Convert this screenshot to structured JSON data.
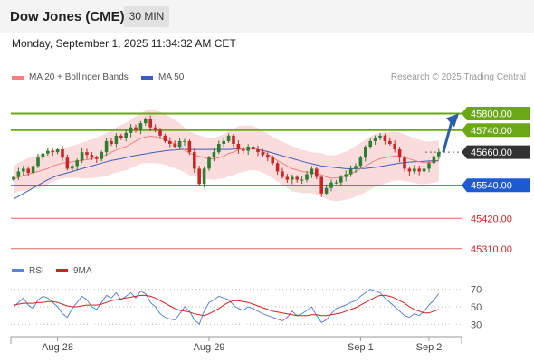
{
  "header": {
    "title": "Dow Jones (CME)",
    "timeframe": "30 MIN"
  },
  "datetime": "Monday, September 1, 2025 11:34:32 AM CET",
  "legend": {
    "bb_label": "MA 20 + Bollinger Bands",
    "ma50_label": "MA 50",
    "credit": "Research © 2025 Trading Central"
  },
  "colors": {
    "up": "#2e7d32",
    "down": "#c62828",
    "band": "#fbdcdc",
    "ma20": "#f08080",
    "ma50": "#3c5fb4",
    "resistance": "#6aa816",
    "support": "#e06666",
    "pivot": "#1e5ad0",
    "current": "#333333",
    "arrow": "#2e5ea8",
    "rsi": "#5b84d6",
    "rsi_ma": "#d62020"
  },
  "chart_data": [
    {
      "type": "candlestick",
      "x_labels": [
        "Aug 28",
        "Aug 29",
        "Sep 1",
        "Sep 2"
      ],
      "ylim": [
        45260,
        45900
      ],
      "levels": [
        {
          "value": 45800,
          "label": "45800.00",
          "kind": "resistance"
        },
        {
          "value": 45740,
          "label": "45740.00",
          "kind": "resistance"
        },
        {
          "value": 45660,
          "label": "45660.00",
          "kind": "current"
        },
        {
          "value": 45540,
          "label": "45540.00",
          "kind": "pivot"
        },
        {
          "value": 45420,
          "label": "45420.00",
          "kind": "support"
        },
        {
          "value": 45310,
          "label": "45310.00",
          "kind": "support"
        }
      ],
      "close": [
        45570,
        45590,
        45600,
        45585,
        45610,
        45640,
        45655,
        45665,
        45660,
        45670,
        45640,
        45600,
        45610,
        45630,
        45660,
        45650,
        45640,
        45635,
        45660,
        45700,
        45690,
        45720,
        45710,
        45730,
        45750,
        45740,
        45765,
        45780,
        45750,
        45740,
        45720,
        45700,
        45690,
        45680,
        45700,
        45700,
        45660,
        45600,
        45545,
        45600,
        45640,
        45660,
        45690,
        45700,
        45720,
        45690,
        45670,
        45665,
        45680,
        45670,
        45660,
        45650,
        45640,
        45620,
        45590,
        45570,
        45560,
        45570,
        45560,
        45560,
        45580,
        45600,
        45570,
        45510,
        45530,
        45550,
        45550,
        45570,
        45580,
        45600,
        45610,
        45640,
        45680,
        45700,
        45710,
        45720,
        45700,
        45690,
        45670,
        45640,
        45600,
        45590,
        45600,
        45590,
        45600,
        45620,
        45645,
        45660
      ],
      "ma20": [
        45560,
        45570,
        45575,
        45580,
        45585,
        45590,
        45595,
        45600,
        45610,
        45615,
        45620,
        45622,
        45625,
        45628,
        45630,
        45633,
        45636,
        45640,
        45645,
        45650,
        45660,
        45668,
        45675,
        45680,
        45690,
        45700,
        45710,
        45715,
        45718,
        45716,
        45712,
        45706,
        45698,
        45690,
        45680,
        45668,
        45656,
        45650,
        45645,
        45640,
        45636,
        45635,
        45640,
        45645,
        45655,
        45660,
        45670,
        45672,
        45675,
        45675,
        45670,
        45662,
        45652,
        45640,
        45630,
        45620,
        45610,
        45600,
        45595,
        45590,
        45588,
        45585,
        45582,
        45578,
        45570,
        45566,
        45566,
        45570,
        45575,
        45582,
        45590,
        45600,
        45610,
        45620,
        45630,
        45636,
        45640,
        45643,
        45646,
        45645,
        45640,
        45635,
        45630,
        45625,
        45622,
        45622,
        45625,
        45628
      ],
      "bb_width": [
        50,
        52,
        55,
        58,
        60,
        60,
        60,
        58,
        56,
        55,
        55,
        56,
        58,
        60,
        65,
        68,
        70,
        72,
        75,
        78,
        80,
        82,
        84,
        86,
        88,
        90,
        92,
        95,
        98,
        96,
        94,
        92,
        90,
        88,
        85,
        82,
        80,
        78,
        76,
        75,
        75,
        76,
        78,
        80,
        82,
        84,
        85,
        84,
        82,
        80,
        78,
        76,
        75,
        75,
        76,
        78,
        80,
        82,
        80,
        78,
        76,
        74,
        76,
        78,
        80,
        82,
        84,
        86,
        88,
        90,
        92,
        94,
        95,
        96,
        96,
        95,
        93,
        91,
        89,
        87,
        85,
        83,
        81,
        80,
        78,
        76,
        75,
        75
      ],
      "ma50": [
        45490,
        45500,
        45510,
        45520,
        45530,
        45540,
        45550,
        45560,
        45568,
        45575,
        45580,
        45585,
        45590,
        45595,
        45600,
        45605,
        45610,
        45615,
        45620,
        45625,
        45630,
        45633,
        45636,
        45640,
        45645,
        45648,
        45651,
        45654,
        45657,
        45660,
        45662,
        45665,
        45667,
        45668,
        45670,
        45670,
        45670,
        45670,
        45670,
        45670,
        45670,
        45670,
        45670,
        45670,
        45670,
        45671,
        45673,
        45675,
        45675,
        45673,
        45670,
        45666,
        45662,
        45657,
        45652,
        45647,
        45642,
        45637,
        45632,
        45627,
        45622,
        45618,
        45614,
        45610,
        45608,
        45606,
        45604,
        45602,
        45600,
        45600,
        45600,
        45600,
        45601,
        45603,
        45605,
        45608,
        45611,
        45614,
        45617,
        45620,
        45622,
        45624,
        45625,
        45626,
        45627,
        45628,
        45629,
        45630
      ]
    },
    {
      "type": "line",
      "series": [
        {
          "name": "RSI",
          "values": [
            50,
            55,
            60,
            52,
            48,
            58,
            62,
            60,
            55,
            50,
            42,
            38,
            48,
            55,
            62,
            58,
            50,
            47,
            55,
            63,
            60,
            66,
            58,
            62,
            66,
            60,
            68,
            65,
            55,
            50,
            42,
            38,
            36,
            35,
            42,
            50,
            45,
            35,
            30,
            45,
            55,
            58,
            62,
            60,
            58,
            52,
            48,
            46,
            50,
            48,
            45,
            42,
            40,
            38,
            36,
            34,
            38,
            45,
            40,
            42,
            46,
            50,
            40,
            32,
            35,
            42,
            48,
            50,
            52,
            55,
            57,
            62,
            66,
            70,
            68,
            66,
            60,
            55,
            50,
            45,
            40,
            38,
            42,
            40,
            45,
            52,
            58,
            65
          ]
        },
        {
          "name": "9MA",
          "values": [
            52,
            53,
            54,
            54,
            54,
            55,
            55,
            56,
            56,
            55,
            53,
            51,
            50,
            50,
            51,
            52,
            52,
            52,
            53,
            55,
            57,
            58,
            59,
            60,
            61,
            62,
            63,
            63,
            62,
            60,
            57,
            54,
            51,
            48,
            46,
            45,
            44,
            42,
            41,
            40,
            42,
            45,
            48,
            52,
            55,
            57,
            57,
            56,
            55,
            53,
            51,
            49,
            47,
            45,
            44,
            43,
            42,
            41,
            40,
            40,
            40,
            41,
            41,
            40,
            40,
            41,
            42,
            43,
            45,
            47,
            49,
            52,
            55,
            58,
            61,
            63,
            63,
            62,
            60,
            57,
            54,
            50,
            47,
            45,
            43,
            43,
            45,
            47
          ]
        }
      ],
      "y_ticks": [
        70,
        50,
        30
      ]
    }
  ]
}
